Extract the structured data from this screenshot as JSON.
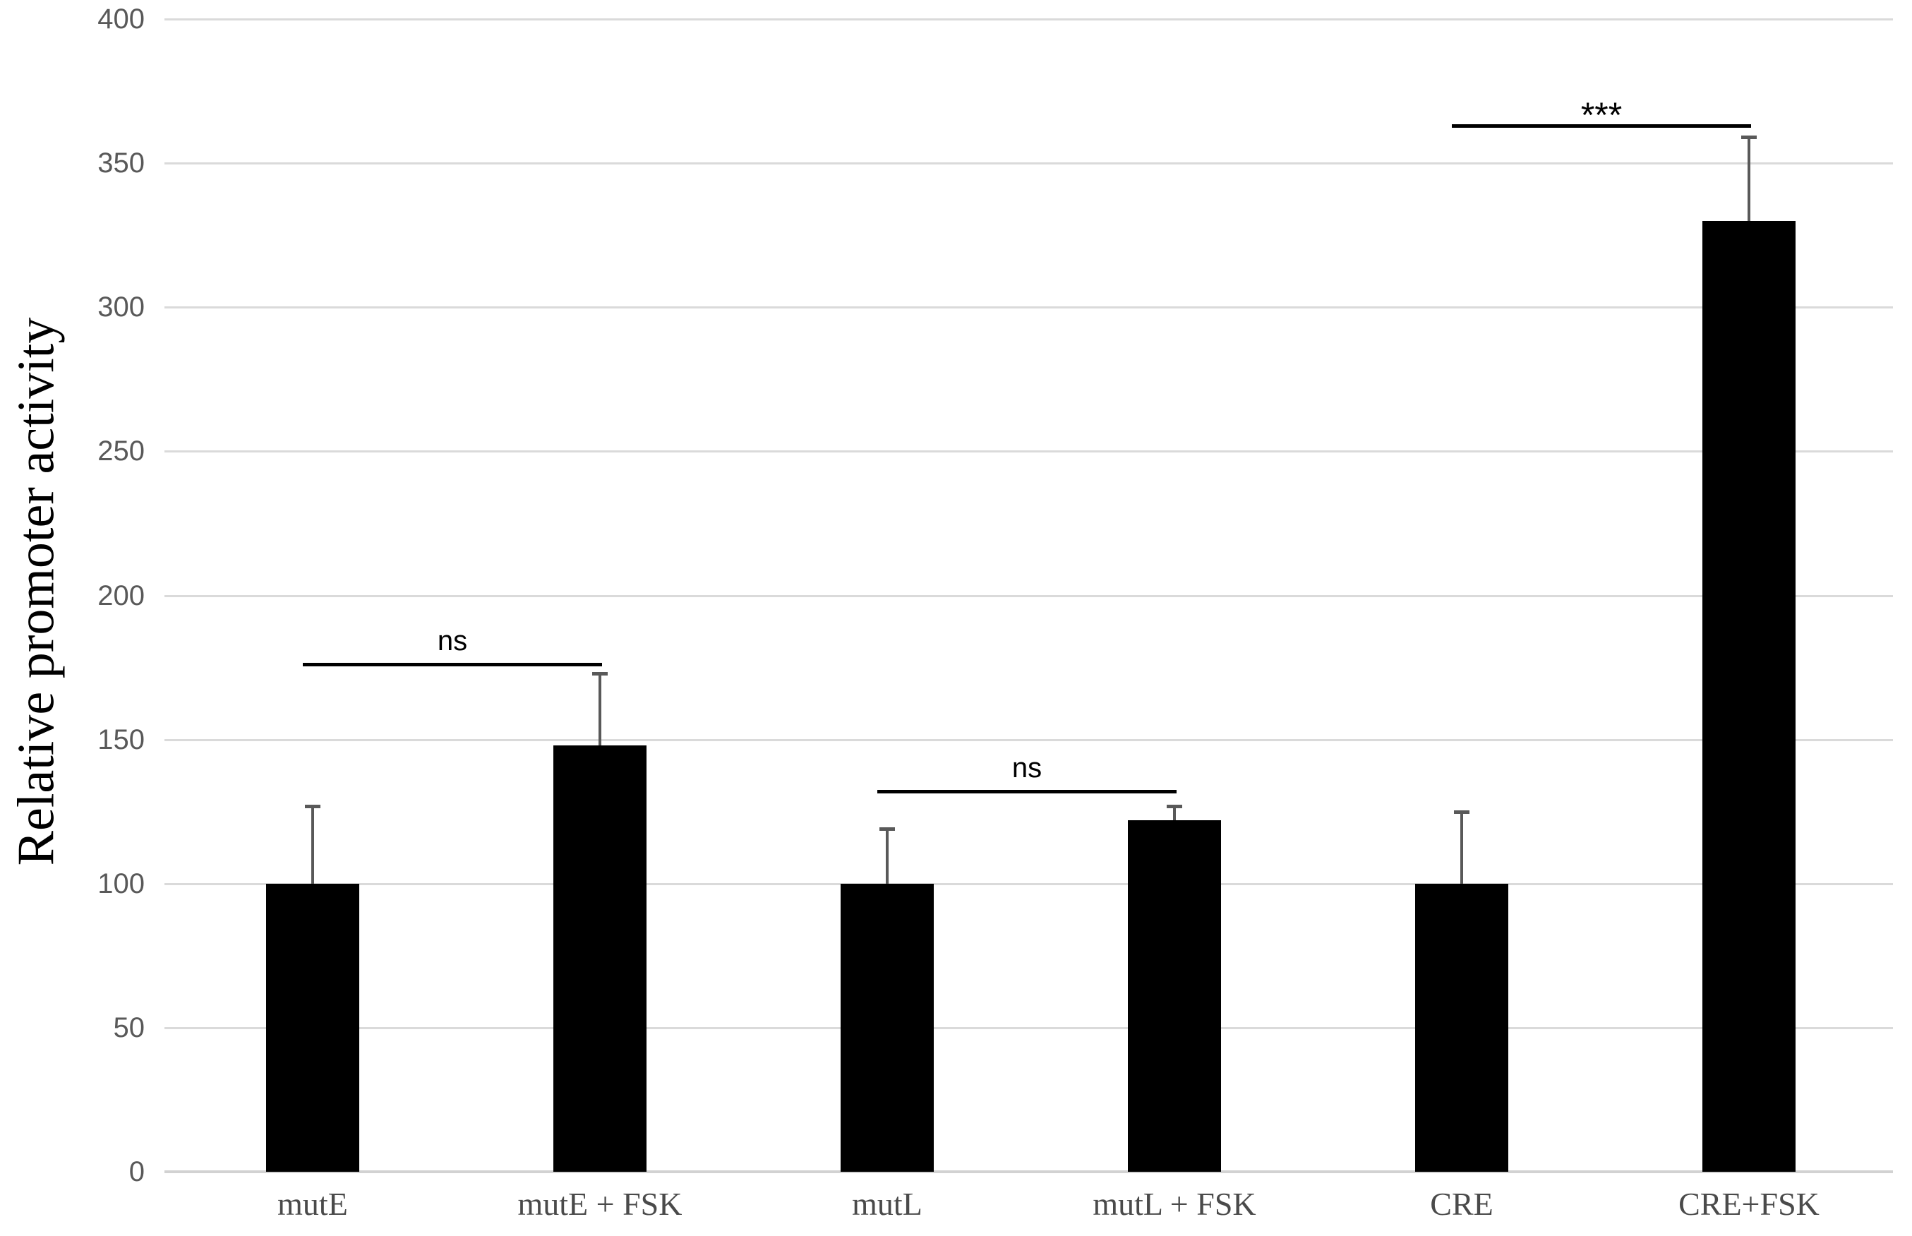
{
  "chart_data": {
    "type": "bar",
    "title": "",
    "ylabel": "Relative promoter activity",
    "xlabel": "",
    "ylim": [
      0,
      400
    ],
    "ytick_step": 50,
    "ytick_labels": [
      "0",
      "50",
      "100",
      "150",
      "200",
      "250",
      "300",
      "350",
      "400"
    ],
    "categories": [
      "mutE",
      "mutE + FSK",
      "mutL",
      "mutL + FSK",
      "CRE",
      "CRE+FSK"
    ],
    "values": [
      100,
      148,
      100,
      122,
      100,
      330
    ],
    "error_up": [
      27,
      25,
      19,
      5,
      25,
      29
    ],
    "annotations": [
      {
        "label": "ns",
        "from_index": 0,
        "to_index": 1,
        "y": 176
      },
      {
        "label": "ns",
        "from_index": 2,
        "to_index": 3,
        "y": 132
      },
      {
        "label": "***",
        "from_index": 4,
        "to_index": 5,
        "y": 363
      }
    ],
    "grid": true,
    "legend": null,
    "colors": {
      "bar": "#000000",
      "error_bar": "#595959",
      "gridline": "#dadada",
      "axis_line": "#d2d2d2",
      "tick_label": "#595959",
      "category_label": "#4a4a4a",
      "annotation": "#000000"
    }
  }
}
